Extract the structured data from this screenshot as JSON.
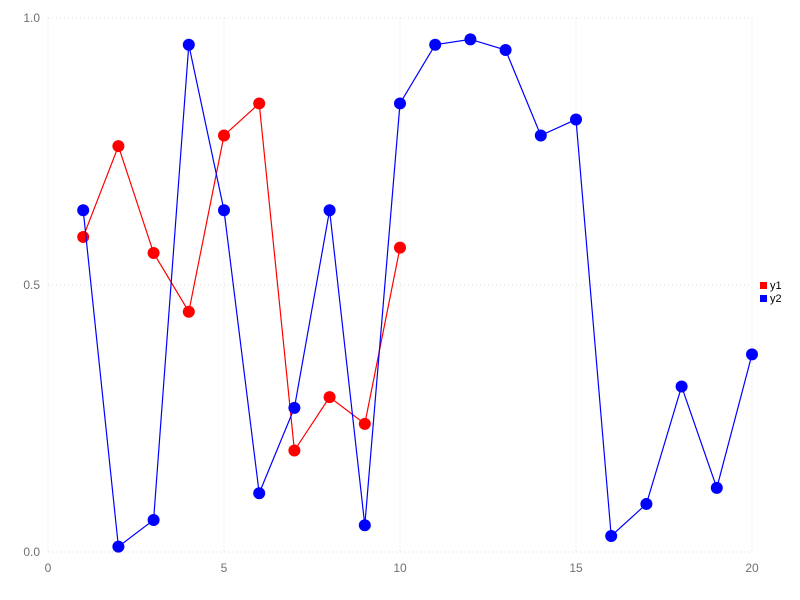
{
  "chart_data": {
    "type": "line",
    "title": "",
    "xlabel": "",
    "ylabel": "",
    "xlim": [
      0,
      20
    ],
    "ylim": [
      0,
      1
    ],
    "xticks": [
      0,
      5,
      10,
      15,
      20
    ],
    "xtick_labels": [
      "0",
      "5",
      "10",
      "15",
      "20"
    ],
    "yticks": [
      0,
      0.5,
      1
    ],
    "ytick_labels": [
      "0.0",
      "0.5",
      "1.0"
    ],
    "grid": "dotted",
    "grid_color": "#dddddd",
    "tick_label_color": "#707070",
    "background": "#ffffff",
    "legend_position": "right-outside",
    "legend_text_color": "#000000",
    "marker_radius": 6,
    "line_width": 1.2,
    "series": [
      {
        "name": "y1",
        "color": "#ff0000",
        "x": [
          1,
          2,
          3,
          4,
          5,
          6,
          7,
          8,
          9,
          10
        ],
        "values": [
          0.59,
          0.76,
          0.56,
          0.45,
          0.78,
          0.84,
          0.19,
          0.29,
          0.24,
          0.57
        ]
      },
      {
        "name": "y2",
        "color": "#0000ff",
        "x": [
          1,
          2,
          3,
          4,
          5,
          6,
          7,
          8,
          9,
          10,
          11,
          12,
          13,
          14,
          15,
          16,
          17,
          18,
          19,
          20
        ],
        "values": [
          0.64,
          0.01,
          0.06,
          0.95,
          0.64,
          0.11,
          0.27,
          0.64,
          0.05,
          0.84,
          0.95,
          0.96,
          0.94,
          0.78,
          0.81,
          0.03,
          0.09,
          0.31,
          0.12,
          0.37
        ]
      }
    ]
  }
}
